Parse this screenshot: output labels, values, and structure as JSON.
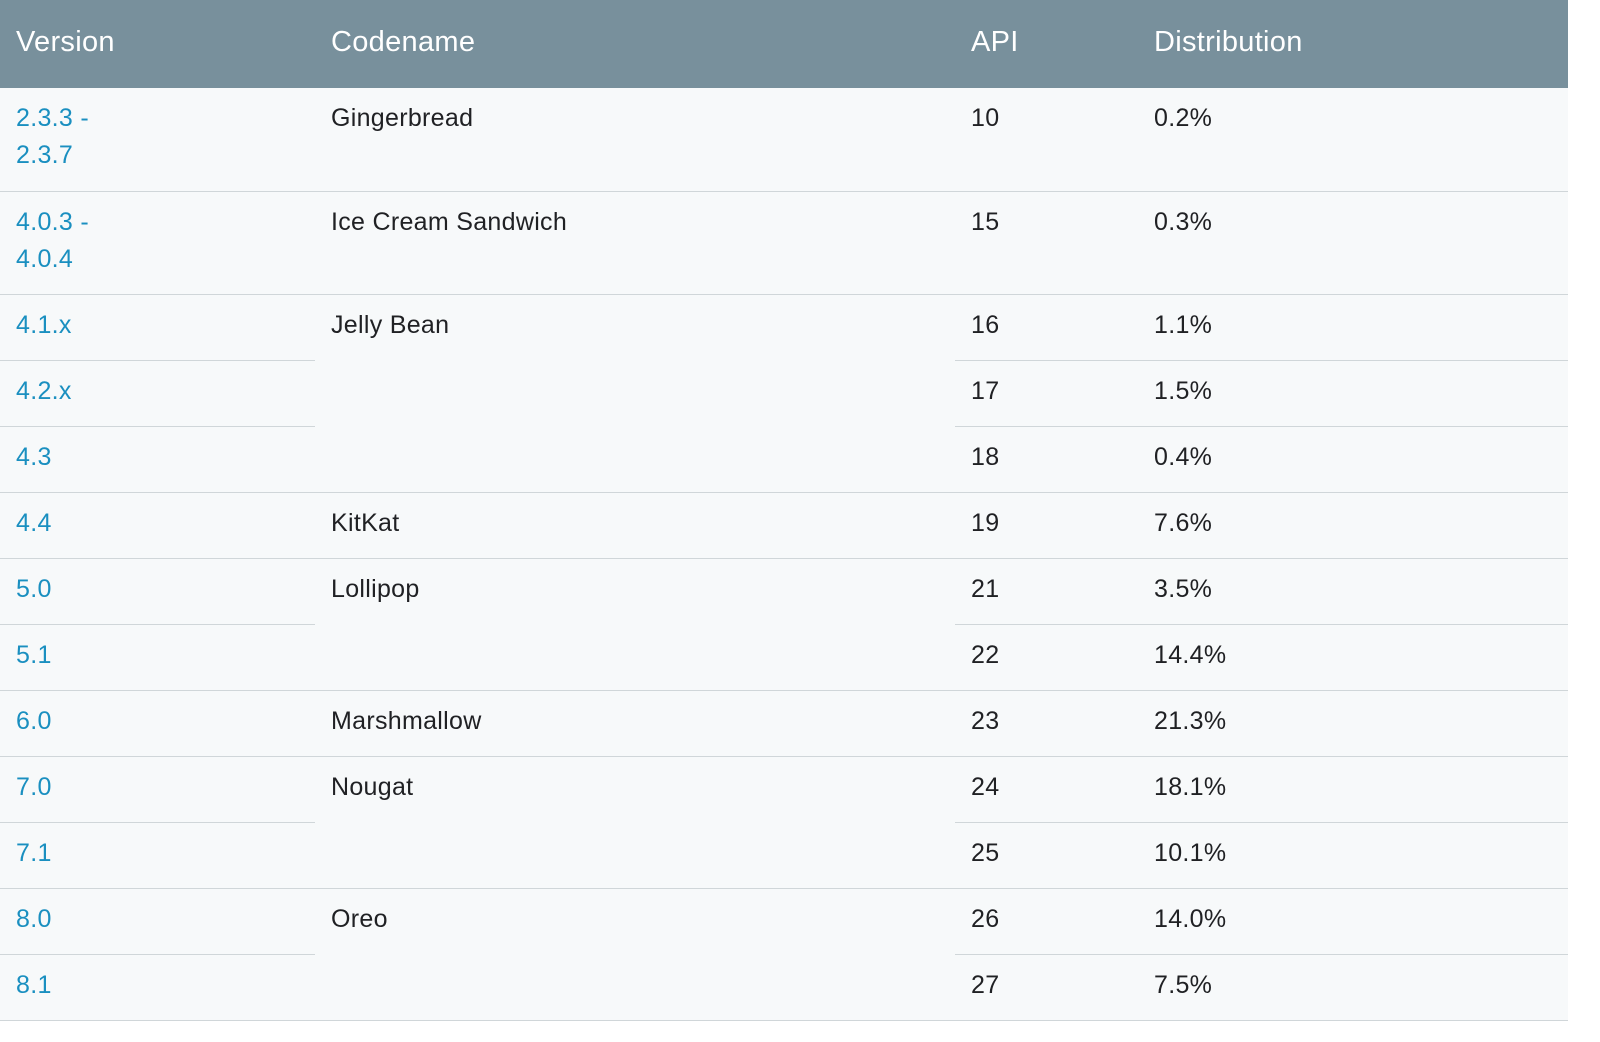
{
  "headers": {
    "version": "Version",
    "codename": "Codename",
    "api": "API",
    "distribution": "Distribution"
  },
  "rows": [
    {
      "version_line1": "2.3.3 -",
      "version_line2": "2.3.7",
      "codename": "Gingerbread",
      "api": "10",
      "distribution": "0.2%"
    },
    {
      "version_line1": "4.0.3 -",
      "version_line2": "4.0.4",
      "codename": "Ice Cream Sandwich",
      "api": "15",
      "distribution": "0.3%"
    },
    {
      "version": "4.1.x",
      "codename": "Jelly Bean",
      "api": "16",
      "distribution": "1.1%"
    },
    {
      "version": "4.2.x",
      "api": "17",
      "distribution": "1.5%"
    },
    {
      "version": "4.3",
      "api": "18",
      "distribution": "0.4%"
    },
    {
      "version": "4.4",
      "codename": "KitKat",
      "api": "19",
      "distribution": "7.6%"
    },
    {
      "version": "5.0",
      "codename": "Lollipop",
      "api": "21",
      "distribution": "3.5%"
    },
    {
      "version": "5.1",
      "api": "22",
      "distribution": "14.4%"
    },
    {
      "version": "6.0",
      "codename": "Marshmallow",
      "api": "23",
      "distribution": "21.3%"
    },
    {
      "version": "7.0",
      "codename": "Nougat",
      "api": "24",
      "distribution": "18.1%"
    },
    {
      "version": "7.1",
      "api": "25",
      "distribution": "10.1%"
    },
    {
      "version": "8.0",
      "codename": "Oreo",
      "api": "26",
      "distribution": "14.0%"
    },
    {
      "version": "8.1",
      "api": "27",
      "distribution": "7.5%"
    }
  ],
  "colors": {
    "header_bg": "#78909c",
    "header_text": "#ffffff",
    "link": "#1a8fc0",
    "row_bg": "#f7f9fa",
    "divider": "#d0d6d9"
  }
}
